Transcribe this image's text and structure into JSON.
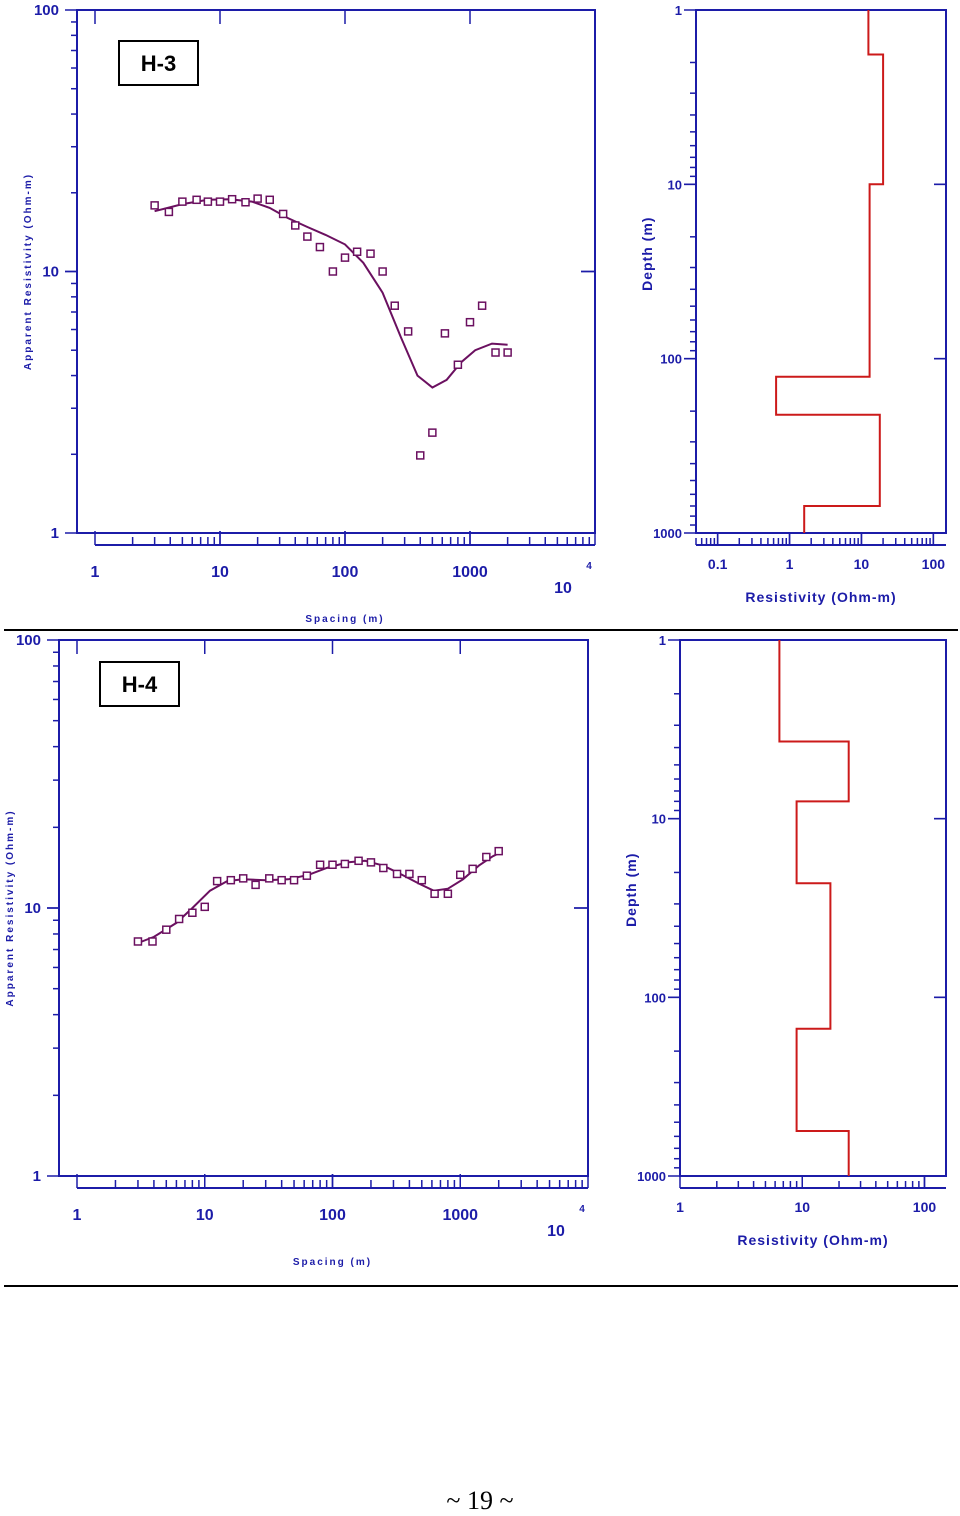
{
  "page": {
    "footer": "~ 19 ~"
  },
  "colors": {
    "axis": "#1c1ca8",
    "curve": "#6b1060",
    "model": "#cc1a1a",
    "box": "#000000",
    "rule": "#000000"
  },
  "chart_data": [
    {
      "id": "h3-sounding",
      "type": "scatter",
      "label": "H-3",
      "xlabel": "Spacing (m)",
      "ylabel": "Apparent Resistivity (Ohm-m)",
      "xscale": "log",
      "yscale": "log",
      "xlim": [
        1,
        10000
      ],
      "ylim": [
        1,
        100
      ],
      "xticks": [
        "1",
        "10",
        "100",
        "1000",
        "10"
      ],
      "xtick_exp": "4",
      "yticks": [
        "1",
        "10",
        "100"
      ],
      "points": [
        [
          3,
          17.9
        ],
        [
          3.9,
          16.9
        ],
        [
          5,
          18.5
        ],
        [
          6.5,
          18.8
        ],
        [
          8,
          18.5
        ],
        [
          10,
          18.5
        ],
        [
          12.5,
          18.9
        ],
        [
          16,
          18.4
        ],
        [
          20,
          19
        ],
        [
          25,
          18.8
        ],
        [
          32,
          16.6
        ],
        [
          40,
          15
        ],
        [
          50,
          13.6
        ],
        [
          63,
          12.4
        ],
        [
          80,
          10
        ],
        [
          100,
          11.3
        ],
        [
          125,
          11.9
        ],
        [
          160,
          11.7
        ],
        [
          200,
          10
        ],
        [
          250,
          7.4
        ],
        [
          320,
          5.9
        ],
        [
          400,
          1.98
        ],
        [
          500,
          2.42
        ],
        [
          630,
          5.8
        ],
        [
          800,
          4.4
        ],
        [
          1000,
          6.4
        ],
        [
          1250,
          7.4
        ],
        [
          1600,
          4.9
        ],
        [
          2000,
          4.9
        ]
      ],
      "curve": [
        [
          3,
          17
        ],
        [
          5,
          18.1
        ],
        [
          8,
          18.8
        ],
        [
          12,
          18.9
        ],
        [
          18,
          18.5
        ],
        [
          25,
          17.5
        ],
        [
          35,
          16
        ],
        [
          50,
          14.8
        ],
        [
          70,
          13.8
        ],
        [
          100,
          12.7
        ],
        [
          140,
          10.8
        ],
        [
          200,
          8.3
        ],
        [
          280,
          5.6
        ],
        [
          380,
          4
        ],
        [
          500,
          3.6
        ],
        [
          650,
          3.85
        ],
        [
          850,
          4.5
        ],
        [
          1100,
          5
        ],
        [
          1500,
          5.3
        ],
        [
          2000,
          5.25
        ]
      ]
    },
    {
      "id": "h3-model",
      "type": "line",
      "xlabel": "Resistivity (Ohm-m)",
      "ylabel": "Depth (m)",
      "xscale": "log",
      "yscale": "log",
      "yinverted": true,
      "xlim": [
        0.05,
        150
      ],
      "ylim": [
        1,
        1000
      ],
      "xticks": [
        "0.1",
        "1",
        "10",
        "100"
      ],
      "yticks": [
        "1",
        "10",
        "100",
        "1000"
      ],
      "layers": [
        {
          "resistivity": 12.5,
          "top": 1,
          "bottom": 1.8
        },
        {
          "resistivity": 20,
          "top": 1.8,
          "bottom": 10
        },
        {
          "resistivity": 13,
          "top": 10,
          "bottom": 127
        },
        {
          "resistivity": 0.65,
          "top": 127,
          "bottom": 210
        },
        {
          "resistivity": 18,
          "top": 210,
          "bottom": 700
        },
        {
          "resistivity": 1.6,
          "top": 700,
          "bottom": 1000
        }
      ]
    },
    {
      "id": "h4-sounding",
      "type": "scatter",
      "label": "H-4",
      "xlabel": "Spacing (m)",
      "ylabel": "Apparent Resistivity (Ohm-m)",
      "xscale": "log",
      "yscale": "log",
      "xlim": [
        1,
        10000
      ],
      "ylim": [
        1,
        100
      ],
      "xticks": [
        "1",
        "10",
        "100",
        "1000",
        "10"
      ],
      "xtick_exp": "4",
      "yticks": [
        "1",
        "10",
        "100"
      ],
      "points": [
        [
          3,
          7.5
        ],
        [
          3.9,
          7.5
        ],
        [
          5,
          8.3
        ],
        [
          6.3,
          9.1
        ],
        [
          8,
          9.6
        ],
        [
          10,
          10.1
        ],
        [
          12.5,
          12.6
        ],
        [
          16,
          12.7
        ],
        [
          20,
          12.9
        ],
        [
          25,
          12.2
        ],
        [
          32,
          12.9
        ],
        [
          40,
          12.7
        ],
        [
          50,
          12.7
        ],
        [
          63,
          13.2
        ],
        [
          80,
          14.5
        ],
        [
          100,
          14.5
        ],
        [
          125,
          14.6
        ],
        [
          160,
          15
        ],
        [
          200,
          14.8
        ],
        [
          250,
          14.1
        ],
        [
          320,
          13.4
        ],
        [
          400,
          13.4
        ],
        [
          500,
          12.7
        ],
        [
          630,
          11.3
        ],
        [
          800,
          11.3
        ],
        [
          1000,
          13.3
        ],
        [
          1250,
          14
        ],
        [
          1600,
          15.5
        ],
        [
          2000,
          16.3
        ]
      ],
      "curve": [
        [
          3,
          7.4
        ],
        [
          4,
          7.8
        ],
        [
          6,
          8.8
        ],
        [
          8,
          10
        ],
        [
          11,
          11.6
        ],
        [
          15,
          12.6
        ],
        [
          20,
          12.8
        ],
        [
          30,
          12.7
        ],
        [
          45,
          12.8
        ],
        [
          65,
          13.3
        ],
        [
          90,
          14.1
        ],
        [
          130,
          14.8
        ],
        [
          180,
          15
        ],
        [
          250,
          14.4
        ],
        [
          350,
          13.3
        ],
        [
          480,
          12.3
        ],
        [
          620,
          11.6
        ],
        [
          800,
          11.8
        ],
        [
          1050,
          12.8
        ],
        [
          1400,
          14.4
        ],
        [
          1800,
          15.6
        ],
        [
          2000,
          16
        ]
      ]
    },
    {
      "id": "h4-model",
      "type": "line",
      "xlabel": "Resistivity (Ohm-m)",
      "ylabel": "Depth (m)",
      "xscale": "log",
      "yscale": "log",
      "yinverted": true,
      "xlim": [
        1,
        150
      ],
      "ylim": [
        1,
        1000
      ],
      "xticks": [
        "1",
        "10",
        "100"
      ],
      "yticks": [
        "1",
        "10",
        "100",
        "1000"
      ],
      "layers": [
        {
          "resistivity": 6.5,
          "top": 1,
          "bottom": 3.7
        },
        {
          "resistivity": 24,
          "top": 3.7,
          "bottom": 8
        },
        {
          "resistivity": 9,
          "top": 8,
          "bottom": 23
        },
        {
          "resistivity": 17,
          "top": 23,
          "bottom": 150
        },
        {
          "resistivity": 9,
          "top": 150,
          "bottom": 560
        },
        {
          "resistivity": 24,
          "top": 560,
          "bottom": 1000
        }
      ]
    }
  ]
}
